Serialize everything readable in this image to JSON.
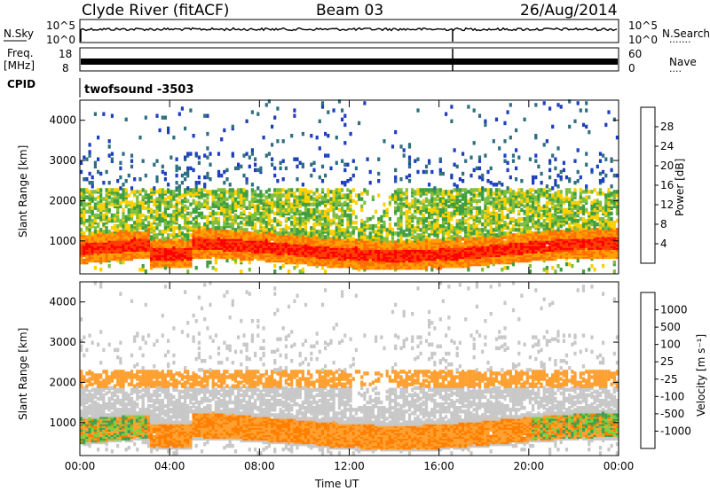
{
  "header": {
    "station": "Clyde River (fitACF)",
    "beam": "Beam 03",
    "date": "26/Aug/2014"
  },
  "params": {
    "nsky_label": "N.Sky",
    "nsky_ticks": [
      "10^5",
      "10^0"
    ],
    "nsearch_label": "N.Search",
    "nsearch_ticks": [
      "10^5",
      "10^0"
    ],
    "freq_label": "Freq.",
    "freq_unit": "[MHz]",
    "freq_ticks": [
      "18",
      "8"
    ],
    "nave_label": "Nave",
    "nave_ticks": [
      "60",
      "0"
    ],
    "cpid_label": "CPID",
    "cpid_value": "twofsound  -3503"
  },
  "colors": {
    "power_scale": [
      "#0000ff",
      "#1f3fbf",
      "#2f6f7f",
      "#3f9f3f",
      "#7fbf3f",
      "#ffcf00",
      "#ff9f00",
      "#ff6f00",
      "#ff3f00",
      "#ff0000"
    ],
    "velocity_scale": [
      "#2f5fbf",
      "#2f7f7f",
      "#3f9f4f",
      "#7fcf3f",
      "#c8c8c8",
      "#c8c8c8",
      "#ffa030",
      "#ff7f00",
      "#ff4f00",
      "#ff0000"
    ]
  },
  "chart_data": [
    {
      "type": "heatmap",
      "panel": "power",
      "ylabel": "Slant Range [km]",
      "xlabel": "",
      "x_ticks": [
        "00:00",
        "04:00",
        "08:00",
        "12:00",
        "16:00",
        "20:00",
        "00:00"
      ],
      "y_ticks": [
        "1000",
        "2000",
        "3000",
        "4000"
      ],
      "ylim": [
        180,
        4500
      ],
      "xlim_hours": [
        0,
        24
      ],
      "colorbar_label": "Power [dB]",
      "colorbar_ticks": [
        "4",
        "8",
        "12",
        "16",
        "20",
        "24",
        "28"
      ],
      "bands": [
        {
          "range_center_km": 800,
          "value_db": 28
        },
        {
          "range_center_km": 1100,
          "value_db": 22
        },
        {
          "range_center_km": 1500,
          "value_db": 16
        },
        {
          "range_center_km": 2000,
          "value_db": 12
        },
        {
          "range_center_km": 3000,
          "value_db": 8
        }
      ]
    },
    {
      "type": "heatmap",
      "panel": "velocity",
      "ylabel": "Slant Range [km]",
      "xlabel": "Time UT",
      "x_ticks": [
        "00:00",
        "04:00",
        "08:00",
        "12:00",
        "16:00",
        "20:00",
        "00:00"
      ],
      "y_ticks": [
        "1000",
        "2000",
        "3000",
        "4000"
      ],
      "ylim": [
        180,
        4500
      ],
      "xlim_hours": [
        0,
        24
      ],
      "colorbar_label": "Velocity  [m s⁻¹]",
      "colorbar_ticks": [
        "1000",
        "500",
        "100",
        "25",
        "-25",
        "-100",
        "-500",
        "-1000"
      ],
      "bands": [
        {
          "range_center_km": 800,
          "value_ms": -300
        },
        {
          "range_center_km": 1400,
          "value_ms": 0
        },
        {
          "range_center_km": 2000,
          "value_ms": -150
        }
      ]
    }
  ]
}
